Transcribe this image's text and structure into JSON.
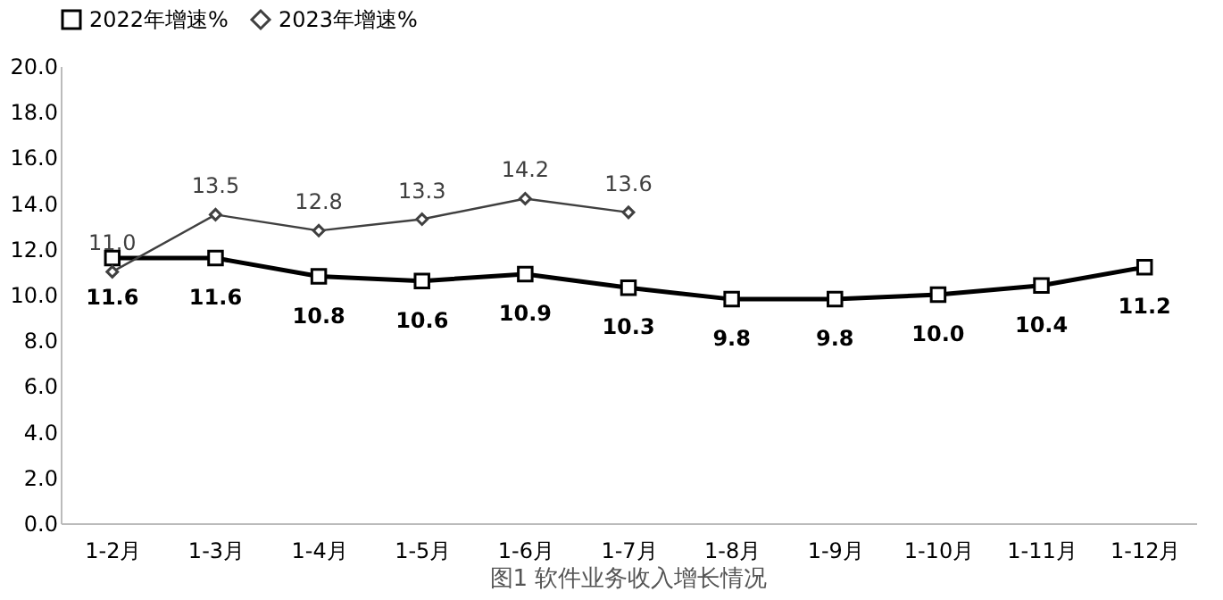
{
  "chart_data": {
    "type": "line",
    "title": "图1  软件业务收入增长情况",
    "categories": [
      "1-2月",
      "1-3月",
      "1-4月",
      "1-5月",
      "1-6月",
      "1-7月",
      "1-8月",
      "1-9月",
      "1-10月",
      "1-11月",
      "1-12月"
    ],
    "series": [
      {
        "name": "2022年增速%",
        "color": "#000000",
        "marker": "square",
        "values": [
          11.6,
          11.6,
          10.8,
          10.6,
          10.9,
          10.3,
          9.8,
          9.8,
          10.0,
          10.4,
          11.2
        ],
        "value_labels": [
          "11.6",
          "11.6",
          "10.8",
          "10.6",
          "10.9",
          "10.3",
          "9.8",
          "9.8",
          "10.0",
          "10.4",
          "11.2"
        ]
      },
      {
        "name": "2023年增速%",
        "color": "#404040",
        "marker": "diamond",
        "values": [
          11.0,
          13.5,
          12.8,
          13.3,
          14.2,
          13.6,
          null,
          null,
          null,
          null,
          null
        ],
        "value_labels": [
          "11.0",
          "13.5",
          "12.8",
          "13.3",
          "14.2",
          "13.6",
          null,
          null,
          null,
          null,
          null
        ]
      }
    ],
    "ylim": [
      0,
      20
    ],
    "yticks": [
      {
        "value": 0,
        "label": "0.0"
      },
      {
        "value": 2,
        "label": "2.0"
      },
      {
        "value": 4,
        "label": "4.0"
      },
      {
        "value": 6,
        "label": "6.0"
      },
      {
        "value": 8,
        "label": "8.0"
      },
      {
        "value": 10,
        "label": "10.0"
      },
      {
        "value": 12,
        "label": "12.0"
      },
      {
        "value": 14,
        "label": "14.0"
      },
      {
        "value": 16,
        "label": "16.0"
      },
      {
        "value": 18,
        "label": "18.0"
      },
      {
        "value": 20,
        "label": "20.0"
      }
    ],
    "grid": false,
    "legend": "top",
    "data_labels": true,
    "line_style": "solid"
  }
}
